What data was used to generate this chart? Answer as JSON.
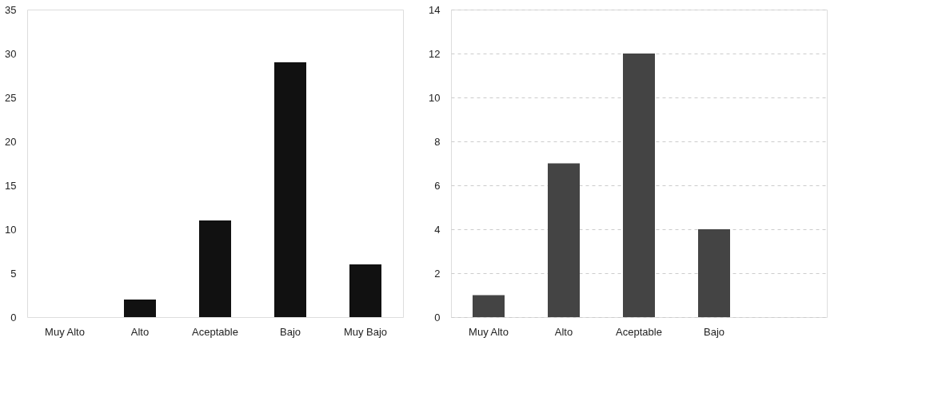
{
  "chart_data": [
    {
      "type": "bar",
      "categories": [
        "Muy Alto",
        "Alto",
        "Aceptable",
        "Bajo",
        "Muy Bajo"
      ],
      "values": [
        0,
        2,
        11,
        29,
        6
      ],
      "color": "#111111",
      "ylim": [
        0,
        35
      ],
      "yticks": [
        0,
        5,
        10,
        15,
        20,
        25,
        30,
        35
      ],
      "grid": false
    },
    {
      "type": "bar",
      "categories": [
        "Muy Alto",
        "Alto",
        "Aceptable",
        "Bajo",
        null
      ],
      "values": [
        1,
        7,
        12,
        4,
        0
      ],
      "color": "#444444",
      "ylim": [
        0,
        14
      ],
      "yticks": [
        0,
        2,
        4,
        6,
        8,
        10,
        12,
        14
      ],
      "grid": "y"
    }
  ]
}
